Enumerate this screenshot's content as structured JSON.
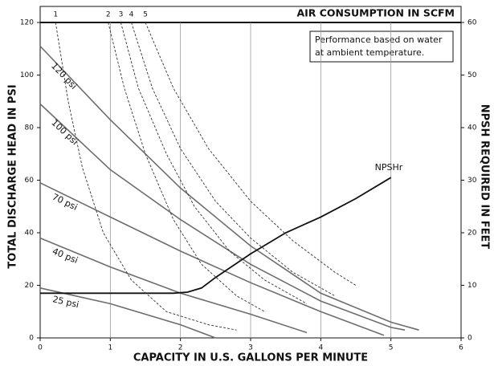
{
  "chart_data": {
    "type": "line",
    "title": "AIR CONSUMPTION IN SCFM",
    "xlabel": "CAPACITY IN U.S. GALLONS PER MINUTE",
    "ylabel": "TOTAL DISCHARGE HEAD IN PSI",
    "y2label": "NPSH REQUIRED IN FEET",
    "annotation": [
      "Performance based on water",
      "at ambient temperature."
    ],
    "xlim": [
      0,
      6
    ],
    "xticks": [
      0,
      1,
      2,
      3,
      4,
      5,
      6
    ],
    "ylim": [
      0,
      120
    ],
    "yticks": [
      0,
      20,
      40,
      60,
      80,
      100,
      120
    ],
    "y2lim": [
      0,
      60
    ],
    "y2ticks": [
      0,
      10,
      20,
      30,
      40,
      50,
      60
    ],
    "grid": true,
    "series": [
      {
        "name": "120 psi",
        "color": "#6d6d6d",
        "x": [
          0,
          1,
          2,
          3,
          4,
          5,
          5.4
        ],
        "values": [
          111,
          83,
          57,
          35,
          17,
          6,
          3
        ]
      },
      {
        "name": "100 psi",
        "color": "#6d6d6d",
        "x": [
          0,
          1,
          2,
          3,
          4,
          5,
          5.2
        ],
        "values": [
          89,
          64,
          45,
          28,
          14,
          4,
          3
        ]
      },
      {
        "name": "70 psi",
        "color": "#6d6d6d",
        "x": [
          0,
          1,
          2,
          3,
          4,
          4.9
        ],
        "values": [
          59,
          46,
          33,
          21,
          10,
          1
        ]
      },
      {
        "name": "40 psi",
        "color": "#6d6d6d",
        "x": [
          0,
          1,
          2,
          3,
          3.8
        ],
        "values": [
          38,
          27,
          17,
          9,
          2
        ]
      },
      {
        "name": "25 psi",
        "color": "#6d6d6d",
        "x": [
          0,
          1,
          2,
          2.5
        ],
        "values": [
          19,
          13,
          5,
          0
        ]
      },
      {
        "name": "NPSHr",
        "color": "#111111",
        "axis": "y2",
        "x": [
          0,
          1.9,
          2.1,
          2.3,
          2.5,
          3,
          3.5,
          4,
          4.5,
          5
        ],
        "values": [
          8.5,
          8.5,
          8.7,
          9.5,
          11.5,
          16,
          20,
          23,
          26.5,
          30.5
        ]
      },
      {
        "name": "1",
        "color": "#333333",
        "dash": true,
        "x": [
          0.22,
          0.4,
          0.6,
          0.9,
          1.3,
          1.8,
          2.4,
          2.8
        ],
        "values": [
          120,
          90,
          65,
          40,
          22,
          10,
          5,
          3
        ]
      },
      {
        "name": "2",
        "color": "#333333",
        "dash": true,
        "x": [
          0.97,
          1.2,
          1.5,
          1.9,
          2.3,
          2.8,
          3.2
        ],
        "values": [
          120,
          95,
          70,
          45,
          28,
          16,
          10
        ]
      },
      {
        "name": "3",
        "color": "#333333",
        "dash": true,
        "x": [
          1.15,
          1.4,
          1.8,
          2.2,
          2.7,
          3.2,
          3.8
        ],
        "values": [
          120,
          95,
          70,
          50,
          33,
          22,
          13
        ]
      },
      {
        "name": "4",
        "color": "#333333",
        "dash": true,
        "x": [
          1.3,
          1.6,
          2,
          2.5,
          3,
          3.6,
          4.2
        ],
        "values": [
          120,
          95,
          72,
          52,
          38,
          25,
          16
        ]
      },
      {
        "name": "5",
        "color": "#333333",
        "dash": true,
        "x": [
          1.5,
          1.9,
          2.4,
          3,
          3.6,
          4.2,
          4.5
        ],
        "values": [
          120,
          95,
          72,
          52,
          37,
          25,
          20
        ]
      }
    ]
  }
}
